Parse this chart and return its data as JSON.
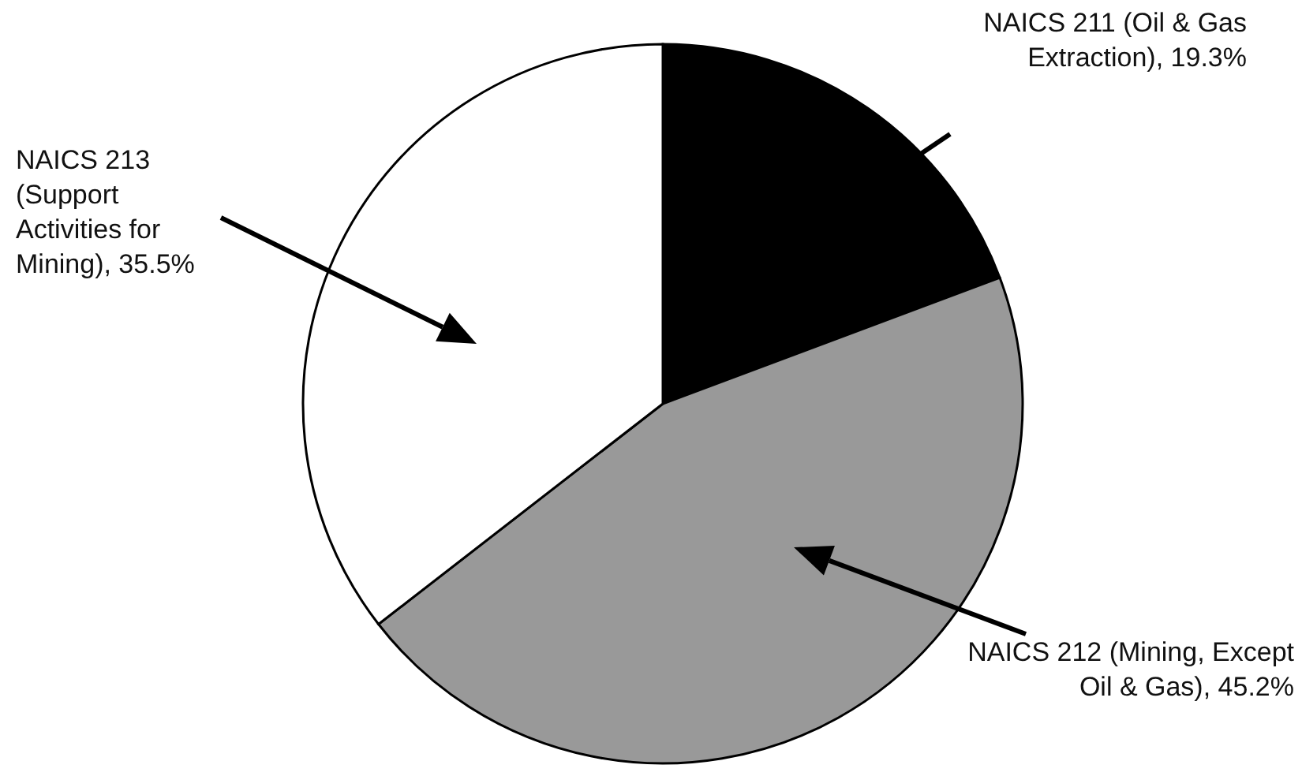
{
  "chart_data": {
    "type": "pie",
    "categories": [
      "NAICS 211 (Oil & Gas Extraction)",
      "NAICS 212 (Mining, Except Oil & Gas)",
      "NAICS 213 (Support Activities for Mining)"
    ],
    "values": [
      19.3,
      45.2,
      35.5
    ],
    "value_labels": [
      "19.3%",
      "45.2%",
      "35.5%"
    ],
    "colors": [
      "#000000",
      "#999999",
      "#ffffff"
    ]
  }
}
